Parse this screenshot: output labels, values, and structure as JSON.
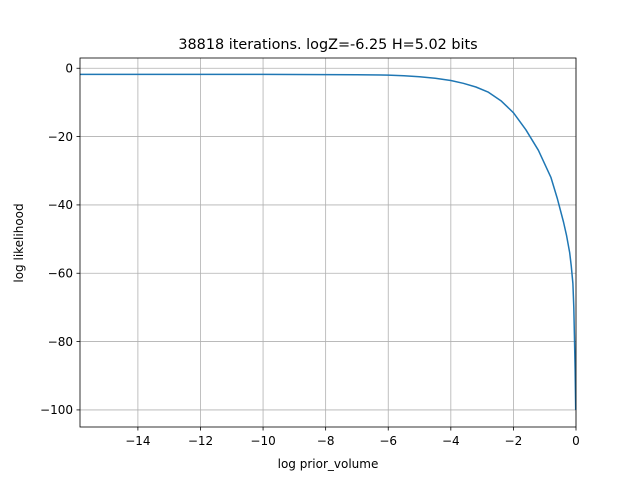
{
  "chart_data": {
    "type": "line",
    "title": "38818 iterations. logZ=-6.25 H=5.02 bits",
    "xlabel": "log prior_volume",
    "ylabel": "log likelihood",
    "xlim": [
      -15.85,
      0
    ],
    "ylim": [
      -105,
      3
    ],
    "xticks": [
      -14,
      -12,
      -10,
      -8,
      -6,
      -4,
      -2,
      0
    ],
    "xtick_labels": [
      "−14",
      "−12",
      "−10",
      "−8",
      "−6",
      "−4",
      "−2",
      "0"
    ],
    "yticks": [
      0,
      -20,
      -40,
      -60,
      -80,
      -100
    ],
    "ytick_labels": [
      "0",
      "−20",
      "−40",
      "−60",
      "−80",
      "−100"
    ],
    "grid": true,
    "series": [
      {
        "color": "#1f77b4",
        "x": [
          -15.85,
          -14,
          -12,
          -10,
          -8,
          -7,
          -6,
          -5.5,
          -5,
          -4.5,
          -4,
          -3.6,
          -3.2,
          -2.8,
          -2.4,
          -2.0,
          -1.6,
          -1.2,
          -0.8,
          -0.6,
          -0.4,
          -0.3,
          -0.2,
          -0.15,
          -0.1,
          -0.07,
          -0.05,
          -0.03,
          -0.01
        ],
        "y": [
          -1.8,
          -1.8,
          -1.8,
          -1.8,
          -1.85,
          -1.9,
          -2.0,
          -2.2,
          -2.5,
          -2.9,
          -3.6,
          -4.4,
          -5.5,
          -7.0,
          -9.5,
          -13,
          -18,
          -24,
          -32,
          -38,
          -45,
          -49,
          -54,
          -58,
          -63,
          -70,
          -78,
          -88,
          -100
        ]
      }
    ]
  }
}
